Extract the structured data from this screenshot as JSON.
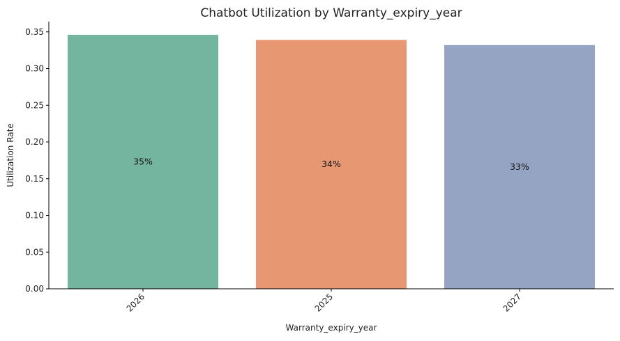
{
  "chart_data": {
    "type": "bar",
    "title": "Chatbot Utilization by Warranty_expiry_year",
    "xlabel": "Warranty_expiry_year",
    "ylabel": "Utilization Rate",
    "categories": [
      "2026",
      "2025",
      "2027"
    ],
    "values": [
      0.346,
      0.339,
      0.332
    ],
    "data_labels": [
      "35%",
      "34%",
      "33%"
    ],
    "colors": [
      "#73b59f",
      "#e89773",
      "#94a4c2"
    ],
    "ylim": [
      0,
      0.364
    ],
    "yticks": [
      0.0,
      0.05,
      0.1,
      0.15,
      0.2,
      0.25,
      0.3,
      0.35
    ],
    "ytick_labels": [
      "0.00",
      "0.05",
      "0.10",
      "0.15",
      "0.20",
      "0.25",
      "0.30",
      "0.35"
    ],
    "grid": false,
    "legend": "none",
    "xtick_rotation": -45
  }
}
